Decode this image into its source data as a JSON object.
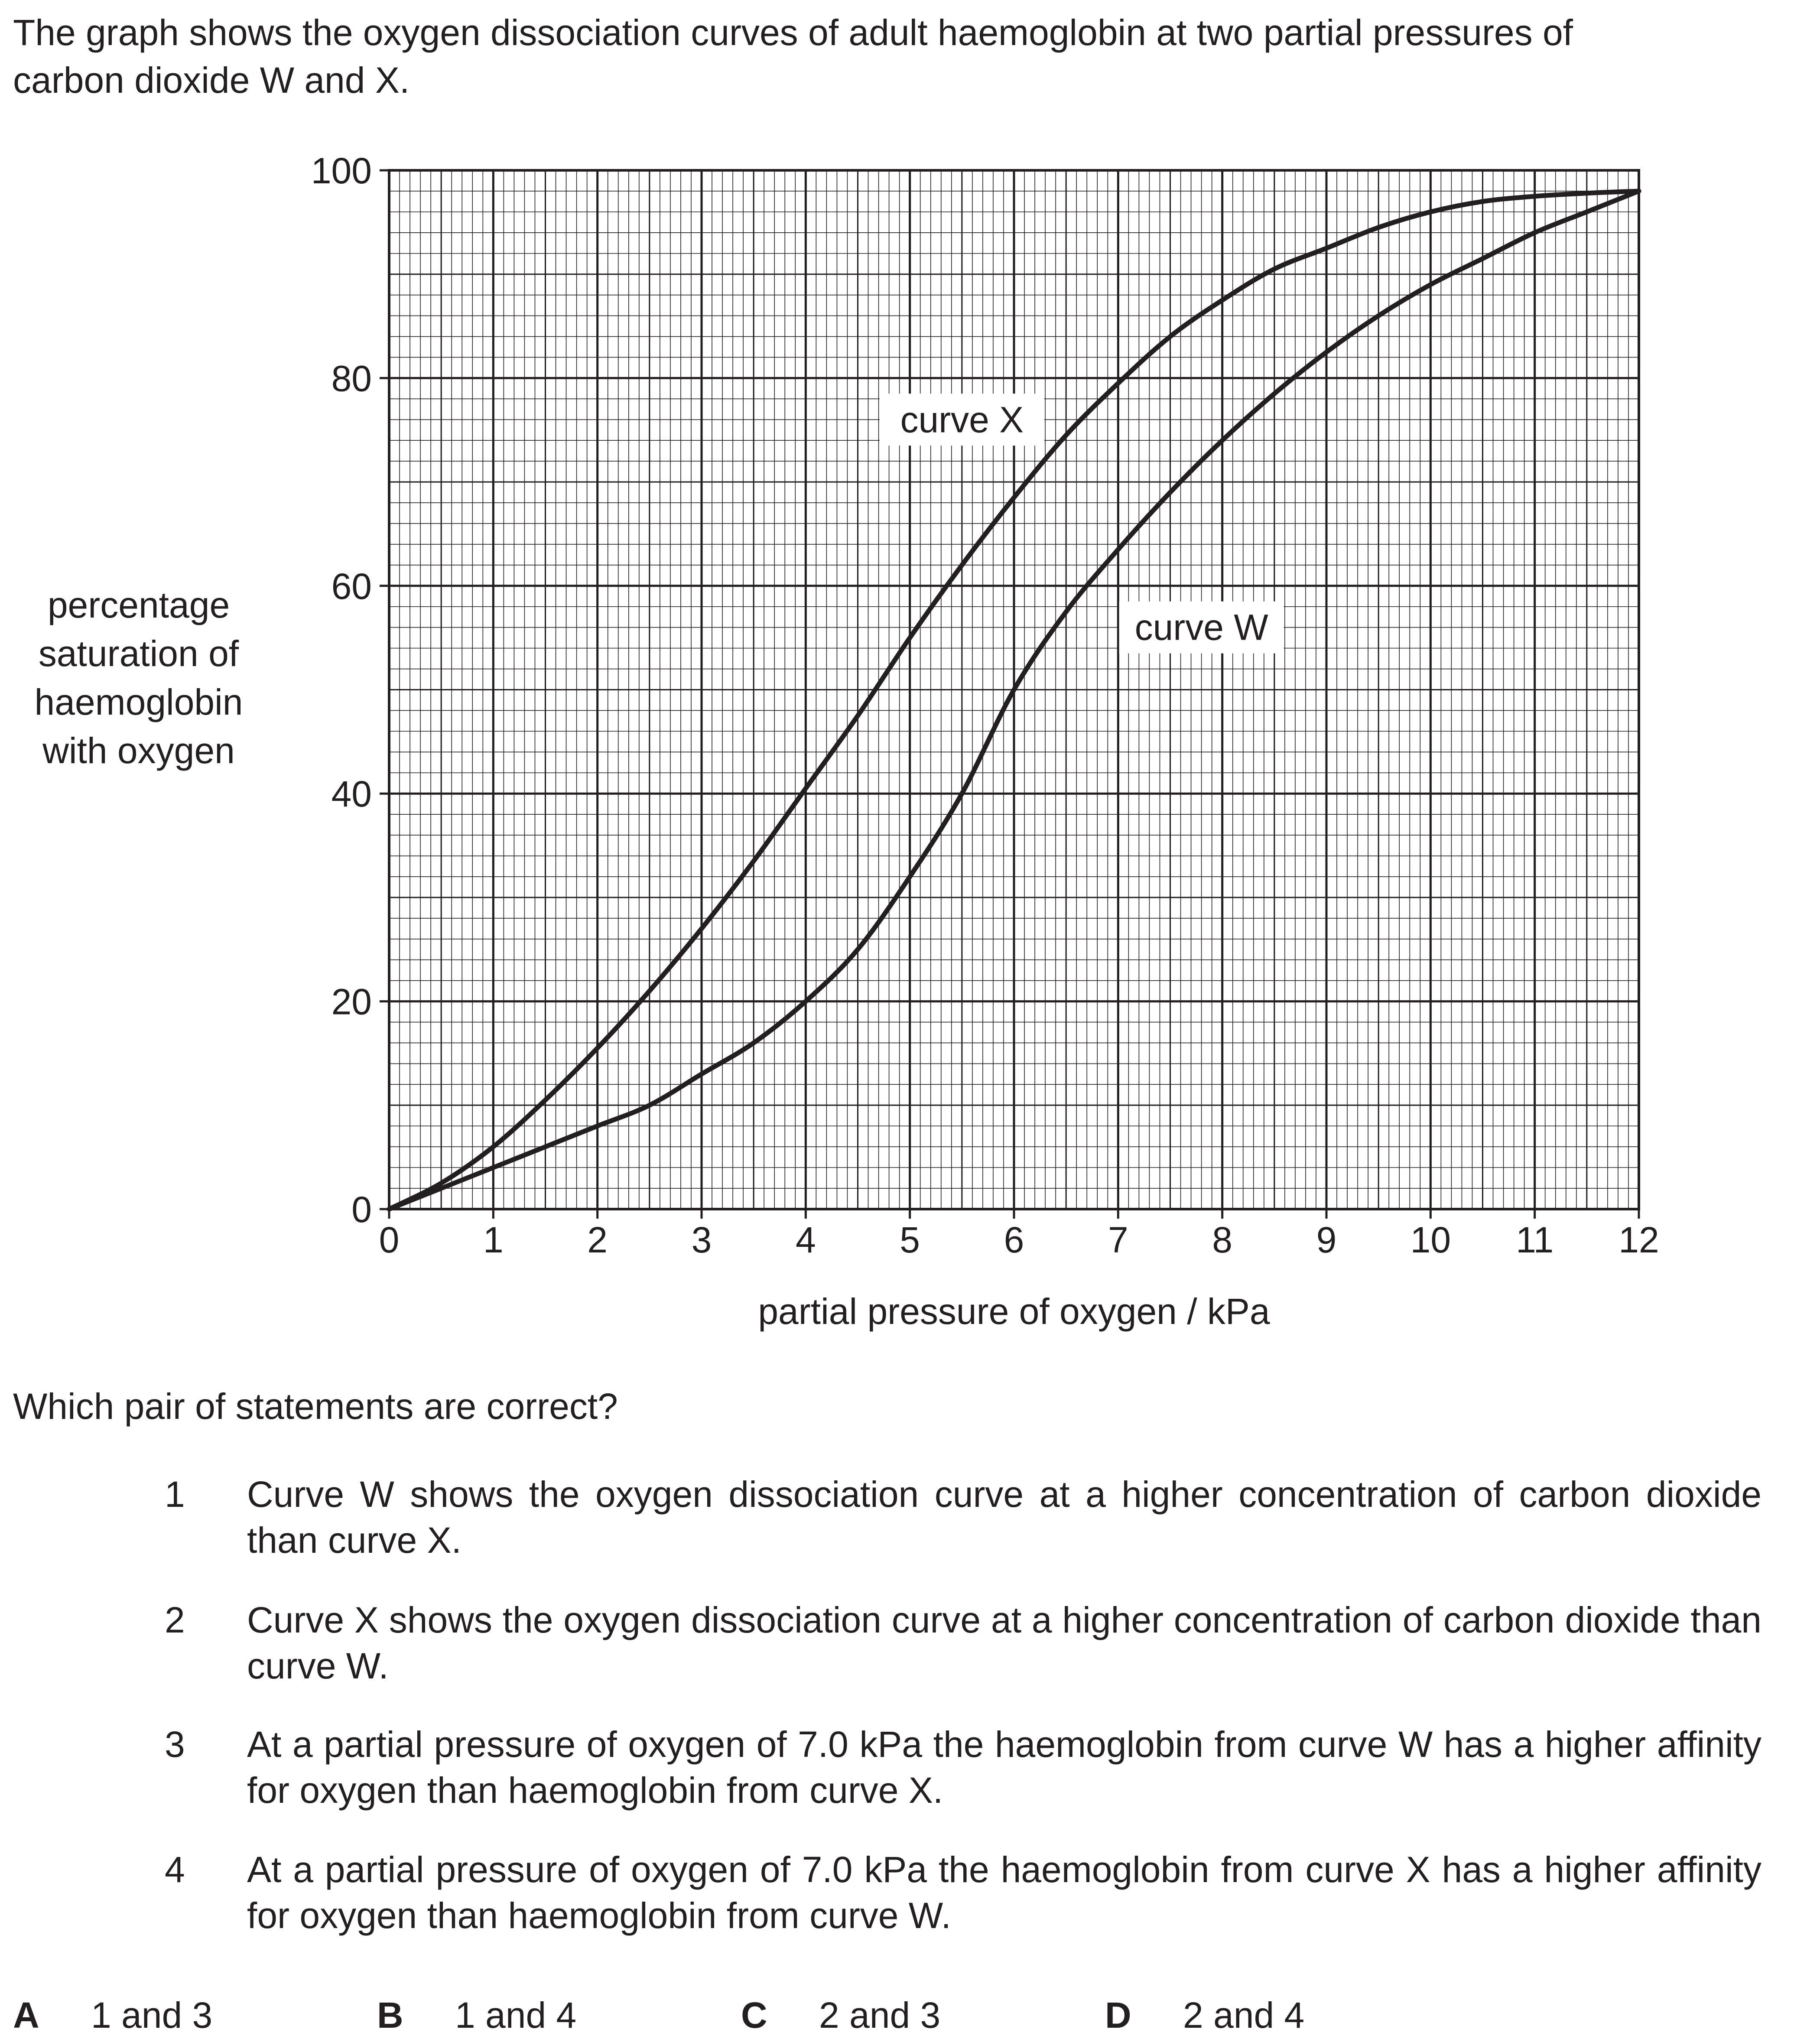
{
  "intro": {
    "line1": "The graph shows the oxygen dissociation curves of adult haemoglobin at two partial pressures of",
    "line2": "carbon dioxide W and X."
  },
  "chart_data": {
    "type": "line",
    "xlabel": "partial pressure of oxygen / kPa",
    "ylabel_lines": [
      "percentage",
      "saturation of",
      "haemoglobin",
      "with oxygen"
    ],
    "xlim": [
      0,
      12
    ],
    "ylim": [
      0,
      100
    ],
    "x_ticks": [
      "0",
      "1",
      "2",
      "3",
      "4",
      "5",
      "6",
      "7",
      "8",
      "9",
      "10",
      "11",
      "12"
    ],
    "y_ticks": [
      "0",
      "20",
      "40",
      "60",
      "80",
      "100"
    ],
    "grid": true,
    "series": [
      {
        "name": "curve X",
        "x": [
          0,
          0.5,
          1,
          1.5,
          2,
          2.5,
          3,
          3.5,
          4,
          4.5,
          5,
          5.5,
          6,
          6.5,
          7,
          7.5,
          8,
          8.5,
          9,
          9.5,
          10,
          10.5,
          11,
          11.5,
          12
        ],
        "y": [
          0,
          2.5,
          6,
          10.5,
          15.5,
          21,
          27,
          33.5,
          40.5,
          47.5,
          55,
          62,
          68.5,
          74.5,
          79.5,
          84,
          87.5,
          90.5,
          92.5,
          94.5,
          96,
          97,
          97.5,
          97.8,
          98
        ]
      },
      {
        "name": "curve W",
        "x": [
          0,
          0.5,
          1,
          1.5,
          2,
          2.5,
          3,
          3.5,
          4,
          4.5,
          5,
          5.5,
          6,
          6.5,
          7,
          7.5,
          8,
          8.5,
          9,
          9.5,
          10,
          10.5,
          11,
          11.5,
          12
        ],
        "y": [
          0,
          2,
          4,
          6,
          8,
          10,
          13,
          16,
          20,
          25,
          32,
          40,
          50,
          57.5,
          63.5,
          69,
          74,
          78.5,
          82.5,
          86,
          89,
          91.5,
          94,
          96,
          98
        ]
      }
    ],
    "annotations": [
      {
        "text": "curve X",
        "x": 5.5,
        "y": 76
      },
      {
        "text": "curve W",
        "x": 7.8,
        "y": 56
      }
    ]
  },
  "question": "Which pair of statements are correct?",
  "statements": [
    {
      "num": "1",
      "text": "Curve W shows the oxygen dissociation curve at a higher concentration of carbon dioxide than curve X."
    },
    {
      "num": "2",
      "text": "Curve X shows the oxygen dissociation curve at a higher concentration of carbon dioxide than curve W."
    },
    {
      "num": "3",
      "text": "At a partial pressure of oxygen of 7.0 kPa the haemoglobin from curve W has a higher affinity for oxygen than haemoglobin from curve X."
    },
    {
      "num": "4",
      "text": "At a partial pressure of oxygen of 7.0 kPa the haemoglobin from curve X has a higher affinity for oxygen than haemoglobin from curve W."
    }
  ],
  "options": [
    {
      "letter": "A",
      "text": "1 and 3"
    },
    {
      "letter": "B",
      "text": "1 and 4"
    },
    {
      "letter": "C",
      "text": "2 and 3"
    },
    {
      "letter": "D",
      "text": "2 and 4"
    }
  ]
}
